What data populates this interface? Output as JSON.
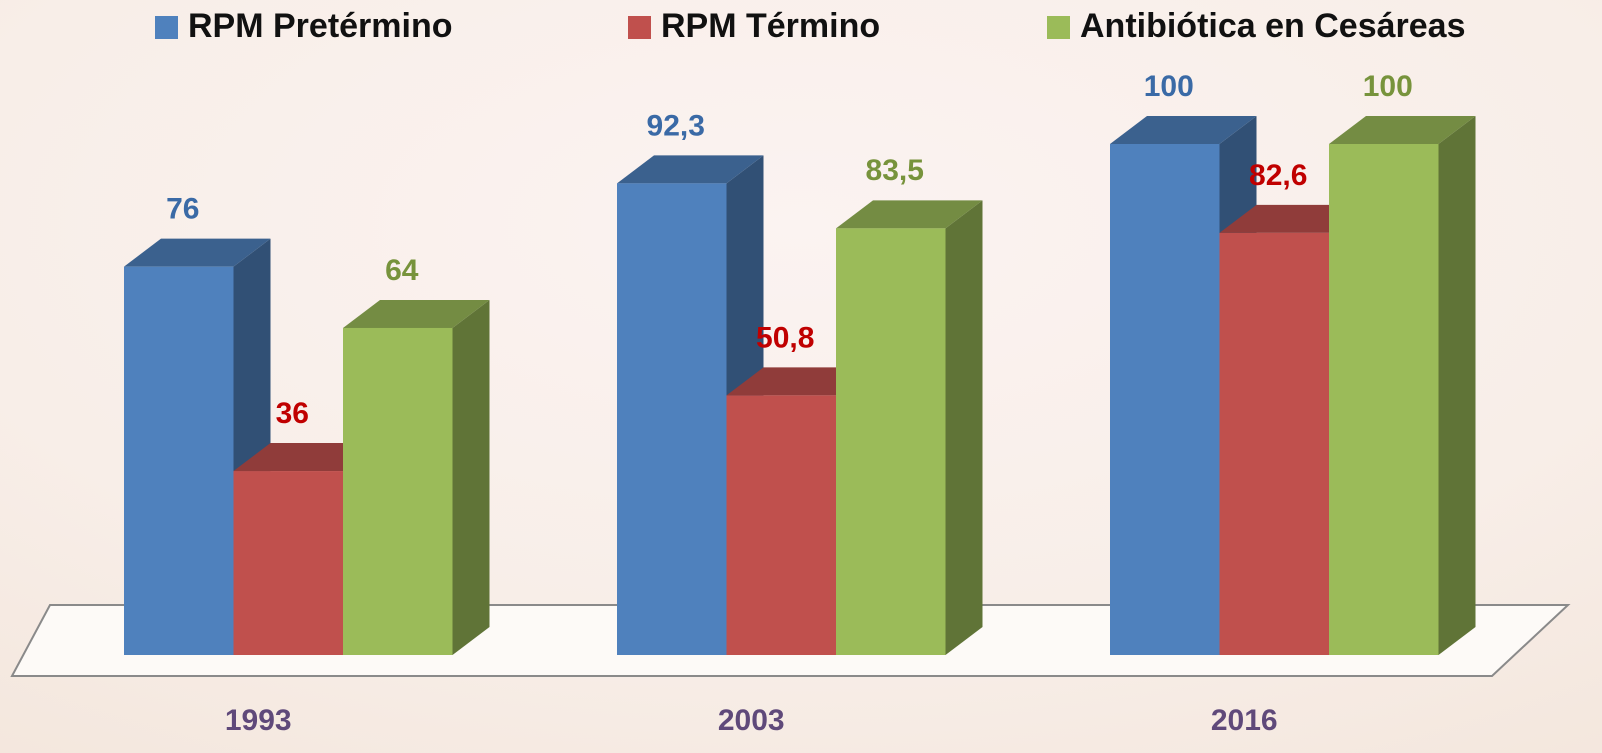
{
  "chart_data": {
    "type": "bar3d",
    "categories": [
      "1993",
      "2003",
      "2016"
    ],
    "series": [
      {
        "name": "RPM Pretérmino",
        "color": "#4f81bd",
        "values": [
          76,
          92.3,
          100
        ],
        "value_labels": [
          "76",
          "92,3",
          "100"
        ]
      },
      {
        "name": "RPM Término",
        "color": "#c0504d",
        "values": [
          36,
          50.8,
          82.6
        ],
        "value_labels": [
          "36",
          "50,8",
          "82,6"
        ]
      },
      {
        "name": "Antibiótica en Cesáreas",
        "color": "#9bbb59",
        "values": [
          64,
          83.5,
          100
        ],
        "value_labels": [
          "64",
          "83,5",
          "100"
        ]
      }
    ],
    "ylim": [
      0,
      100
    ]
  }
}
